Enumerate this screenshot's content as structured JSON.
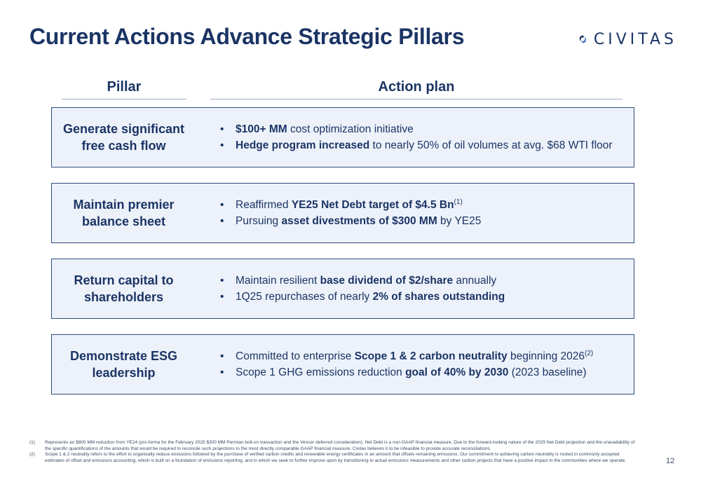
{
  "title": "Current Actions Advance Strategic Pillars",
  "logo": {
    "text": "CIVITAS",
    "icon": "civitas-swirl-logo"
  },
  "columns": {
    "pillar": "Pillar",
    "action": "Action plan"
  },
  "rows": [
    {
      "pillar_line1": "Generate significant",
      "pillar_line2": "free cash flow",
      "bullets": [
        {
          "bold1": "$100+ MM",
          "text1": " cost optimization initiative"
        },
        {
          "bold1": "Hedge program increased",
          "text1": " to nearly 50% of oil volumes at avg. $68 WTI floor"
        }
      ]
    },
    {
      "pillar_line1": "Maintain premier",
      "pillar_line2": "balance sheet",
      "bullets": [
        {
          "pre": "Reaffirmed ",
          "bold1": "YE25 Net Debt target of $4.5 Bn",
          "sup": "(1)"
        },
        {
          "pre": "Pursuing ",
          "bold1": "asset divestments of $300 MM",
          "text1": " by YE25"
        }
      ]
    },
    {
      "pillar_line1": "Return capital to",
      "pillar_line2": "shareholders",
      "bullets": [
        {
          "pre": "Maintain resilient ",
          "bold1": "base dividend of $2/share",
          "text1": " annually"
        },
        {
          "pre": "1Q25 repurchases of nearly ",
          "bold1": "2% of shares outstanding"
        }
      ]
    },
    {
      "pillar_line1": "Demonstrate ESG",
      "pillar_line2": "leadership",
      "bullets": [
        {
          "pre": "Committed to enterprise ",
          "bold1": "Scope 1 & 2 carbon neutrality",
          "text1": " beginning 2026",
          "sup": "(2)"
        },
        {
          "pre": "Scope 1 GHG emissions reduction ",
          "bold1": "goal of 40% by 2030",
          "text1": " (2023 baseline)"
        }
      ]
    }
  ],
  "footnotes": [
    {
      "num": "(1)",
      "text": "Represents an $800 MM reduction from YE24 (pro-forma for the February 2025 $300 MM Permian bolt-on transaction and the Vencer deferred consideration). Net Debt is a non-GAAP financial measure. Due to the forward-looking nature of the 2025 Net Debt projection and the unavailability of the specific quantifications of the amounts that would be required to reconcile such projections to the most directly comparable GAAP financial measure, Civitas believes it to be infeasible to provide accurate reconciliations."
    },
    {
      "num": "(2)",
      "text": "Scope 1 & 2 neutrality refers to the effort to organically reduce emissions followed by the purchase of verified carbon credits and renewable energy certificates in an amount that offsets remaining emissions. Our commitment to achieving carbon neutrality is rooted in commonly accepted estimates of offset and emissions accounting, which is built on a foundation of emissions reporting, and in which we seek to further improve upon by transitioning to actual emissions measurements and other carbon projects that have a positive impact in the communities where we operate."
    }
  ],
  "page_number": "12"
}
